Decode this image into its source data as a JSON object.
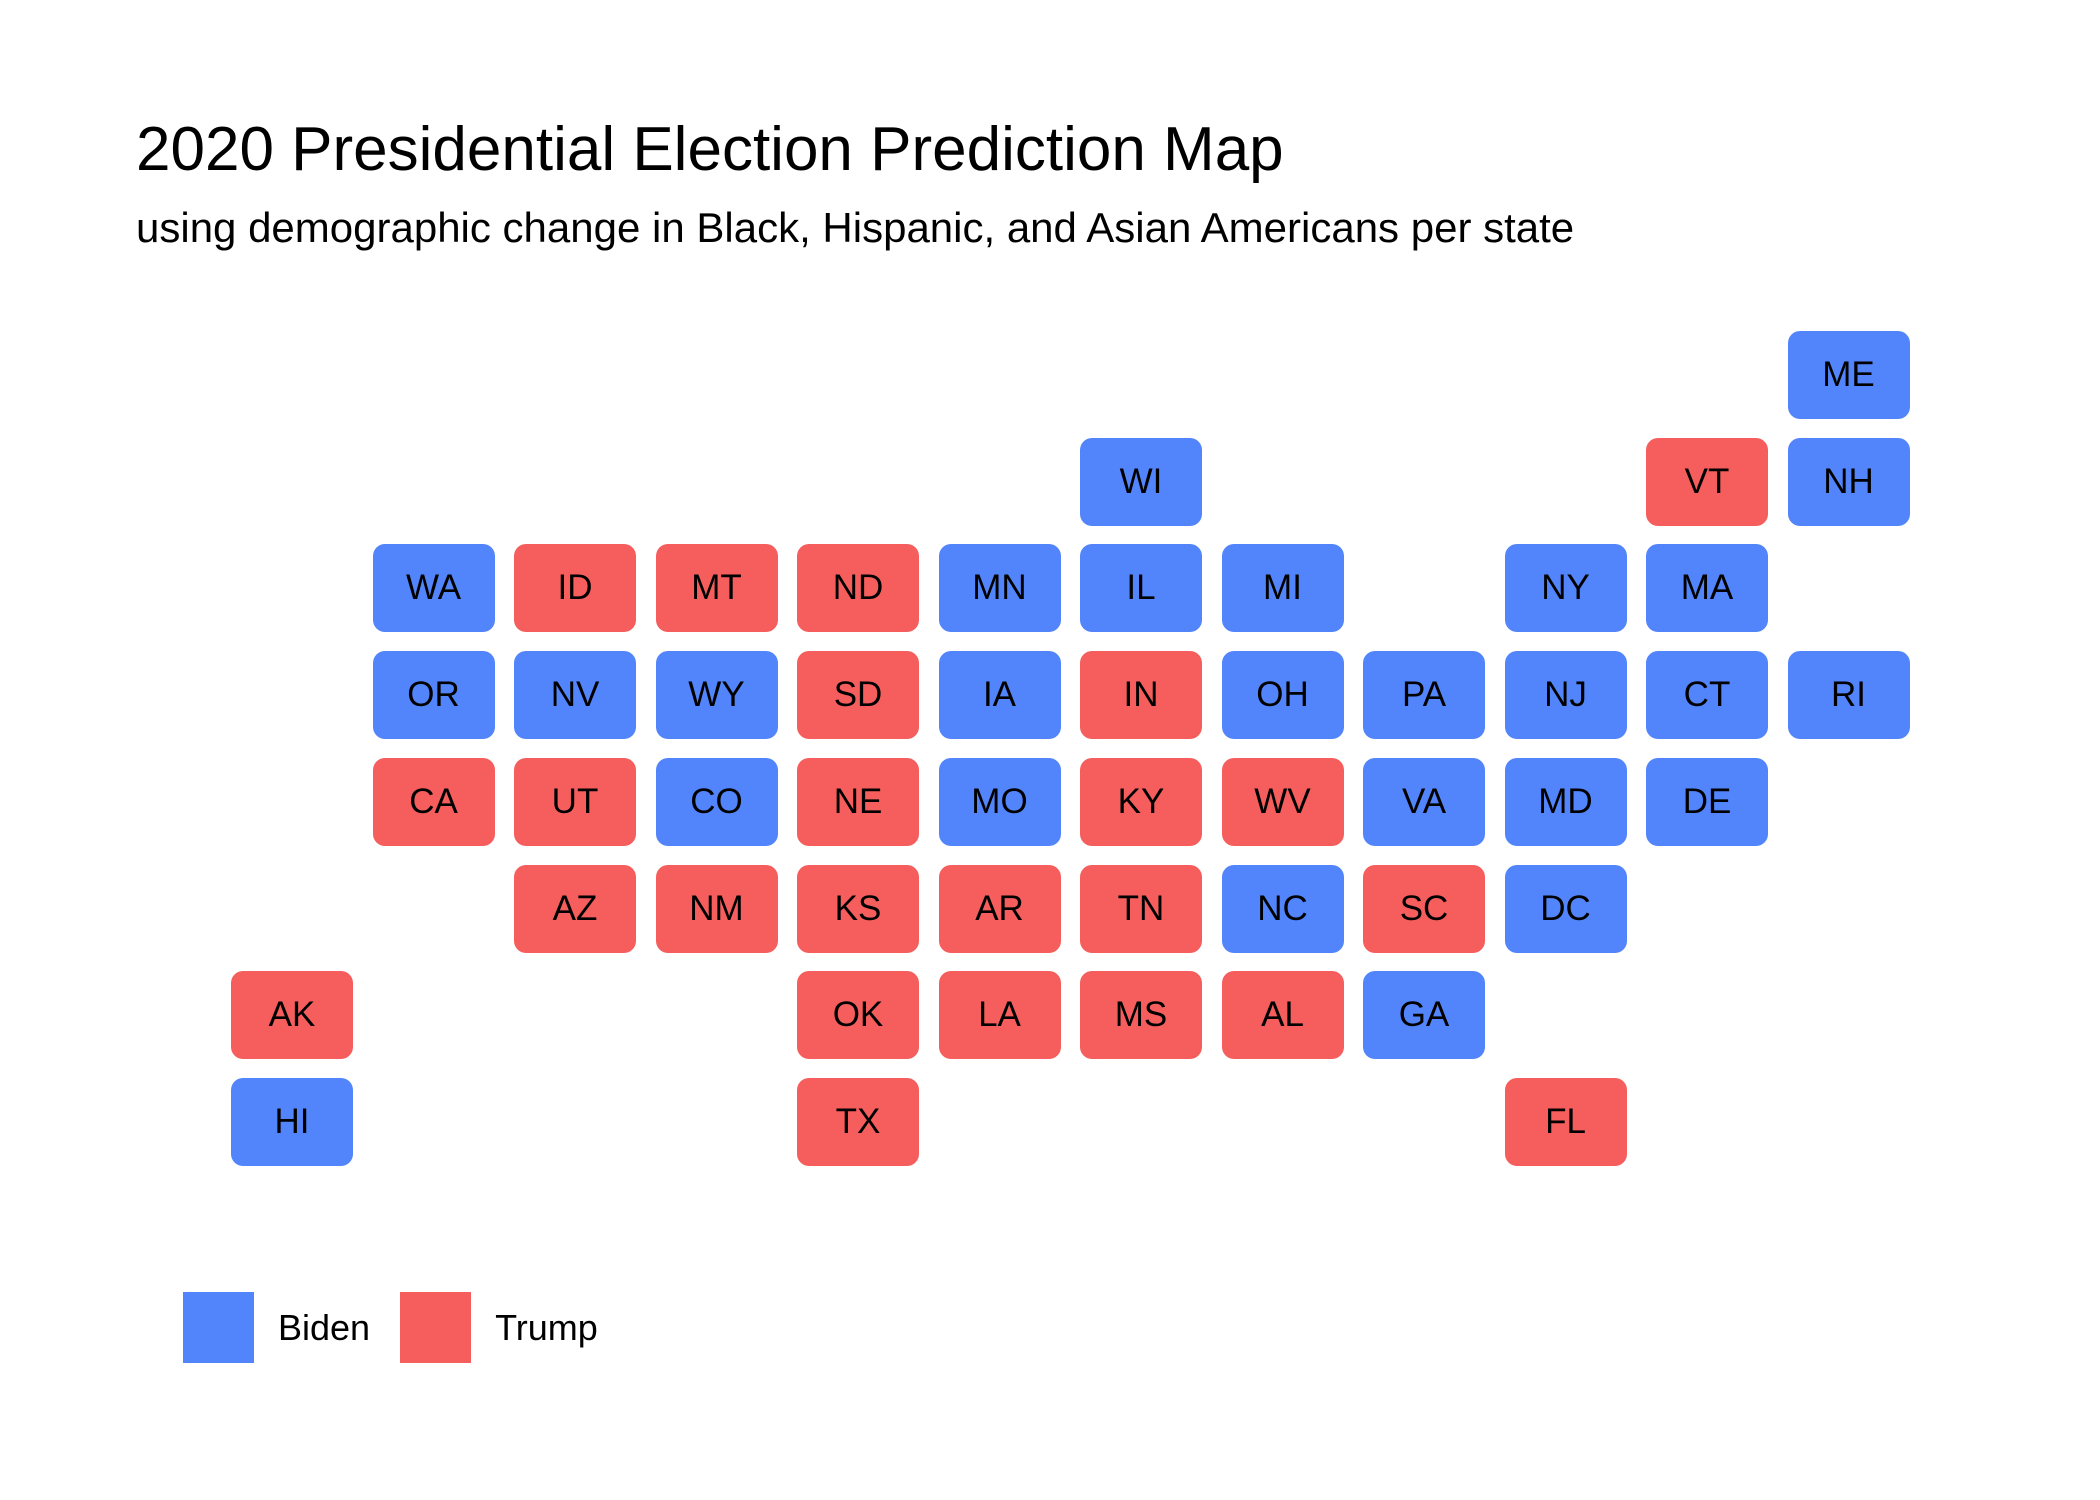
{
  "title": "2020 Presidential Election Prediction Map",
  "subtitle": "using demographic change in Black, Hispanic, and Asian Americans per state",
  "colors": {
    "Biden": "#5285fb",
    "Trump": "#f55e5d"
  },
  "legend": [
    {
      "label": "Biden",
      "party": "Biden"
    },
    {
      "label": "Trump",
      "party": "Trump"
    }
  ],
  "states": [
    {
      "abbr": "ME",
      "party": "Biden",
      "col": 11,
      "row": 0
    },
    {
      "abbr": "WI",
      "party": "Biden",
      "col": 6,
      "row": 1
    },
    {
      "abbr": "VT",
      "party": "Trump",
      "col": 10,
      "row": 1
    },
    {
      "abbr": "NH",
      "party": "Biden",
      "col": 11,
      "row": 1
    },
    {
      "abbr": "WA",
      "party": "Biden",
      "col": 1,
      "row": 2
    },
    {
      "abbr": "ID",
      "party": "Trump",
      "col": 2,
      "row": 2
    },
    {
      "abbr": "MT",
      "party": "Trump",
      "col": 3,
      "row": 2
    },
    {
      "abbr": "ND",
      "party": "Trump",
      "col": 4,
      "row": 2
    },
    {
      "abbr": "MN",
      "party": "Biden",
      "col": 5,
      "row": 2
    },
    {
      "abbr": "IL",
      "party": "Biden",
      "col": 6,
      "row": 2
    },
    {
      "abbr": "MI",
      "party": "Biden",
      "col": 7,
      "row": 2
    },
    {
      "abbr": "NY",
      "party": "Biden",
      "col": 9,
      "row": 2
    },
    {
      "abbr": "MA",
      "party": "Biden",
      "col": 10,
      "row": 2
    },
    {
      "abbr": "OR",
      "party": "Biden",
      "col": 1,
      "row": 3
    },
    {
      "abbr": "NV",
      "party": "Biden",
      "col": 2,
      "row": 3
    },
    {
      "abbr": "WY",
      "party": "Biden",
      "col": 3,
      "row": 3
    },
    {
      "abbr": "SD",
      "party": "Trump",
      "col": 4,
      "row": 3
    },
    {
      "abbr": "IA",
      "party": "Biden",
      "col": 5,
      "row": 3
    },
    {
      "abbr": "IN",
      "party": "Trump",
      "col": 6,
      "row": 3
    },
    {
      "abbr": "OH",
      "party": "Biden",
      "col": 7,
      "row": 3
    },
    {
      "abbr": "PA",
      "party": "Biden",
      "col": 8,
      "row": 3
    },
    {
      "abbr": "NJ",
      "party": "Biden",
      "col": 9,
      "row": 3
    },
    {
      "abbr": "CT",
      "party": "Biden",
      "col": 10,
      "row": 3
    },
    {
      "abbr": "RI",
      "party": "Biden",
      "col": 11,
      "row": 3
    },
    {
      "abbr": "CA",
      "party": "Trump",
      "col": 1,
      "row": 4
    },
    {
      "abbr": "UT",
      "party": "Trump",
      "col": 2,
      "row": 4
    },
    {
      "abbr": "CO",
      "party": "Biden",
      "col": 3,
      "row": 4
    },
    {
      "abbr": "NE",
      "party": "Trump",
      "col": 4,
      "row": 4
    },
    {
      "abbr": "MO",
      "party": "Biden",
      "col": 5,
      "row": 4
    },
    {
      "abbr": "KY",
      "party": "Trump",
      "col": 6,
      "row": 4
    },
    {
      "abbr": "WV",
      "party": "Trump",
      "col": 7,
      "row": 4
    },
    {
      "abbr": "VA",
      "party": "Biden",
      "col": 8,
      "row": 4
    },
    {
      "abbr": "MD",
      "party": "Biden",
      "col": 9,
      "row": 4
    },
    {
      "abbr": "DE",
      "party": "Biden",
      "col": 10,
      "row": 4
    },
    {
      "abbr": "AZ",
      "party": "Trump",
      "col": 2,
      "row": 5
    },
    {
      "abbr": "NM",
      "party": "Trump",
      "col": 3,
      "row": 5
    },
    {
      "abbr": "KS",
      "party": "Trump",
      "col": 4,
      "row": 5
    },
    {
      "abbr": "AR",
      "party": "Trump",
      "col": 5,
      "row": 5
    },
    {
      "abbr": "TN",
      "party": "Trump",
      "col": 6,
      "row": 5
    },
    {
      "abbr": "NC",
      "party": "Biden",
      "col": 7,
      "row": 5
    },
    {
      "abbr": "SC",
      "party": "Trump",
      "col": 8,
      "row": 5
    },
    {
      "abbr": "DC",
      "party": "Biden",
      "col": 9,
      "row": 5
    },
    {
      "abbr": "AK",
      "party": "Trump",
      "col": 0,
      "row": 6
    },
    {
      "abbr": "OK",
      "party": "Trump",
      "col": 4,
      "row": 6
    },
    {
      "abbr": "LA",
      "party": "Trump",
      "col": 5,
      "row": 6
    },
    {
      "abbr": "MS",
      "party": "Trump",
      "col": 6,
      "row": 6
    },
    {
      "abbr": "AL",
      "party": "Trump",
      "col": 7,
      "row": 6
    },
    {
      "abbr": "GA",
      "party": "Biden",
      "col": 8,
      "row": 6
    },
    {
      "abbr": "HI",
      "party": "Biden",
      "col": 0,
      "row": 7
    },
    {
      "abbr": "TX",
      "party": "Trump",
      "col": 4,
      "row": 7
    },
    {
      "abbr": "FL",
      "party": "Trump",
      "col": 9,
      "row": 7
    }
  ]
}
